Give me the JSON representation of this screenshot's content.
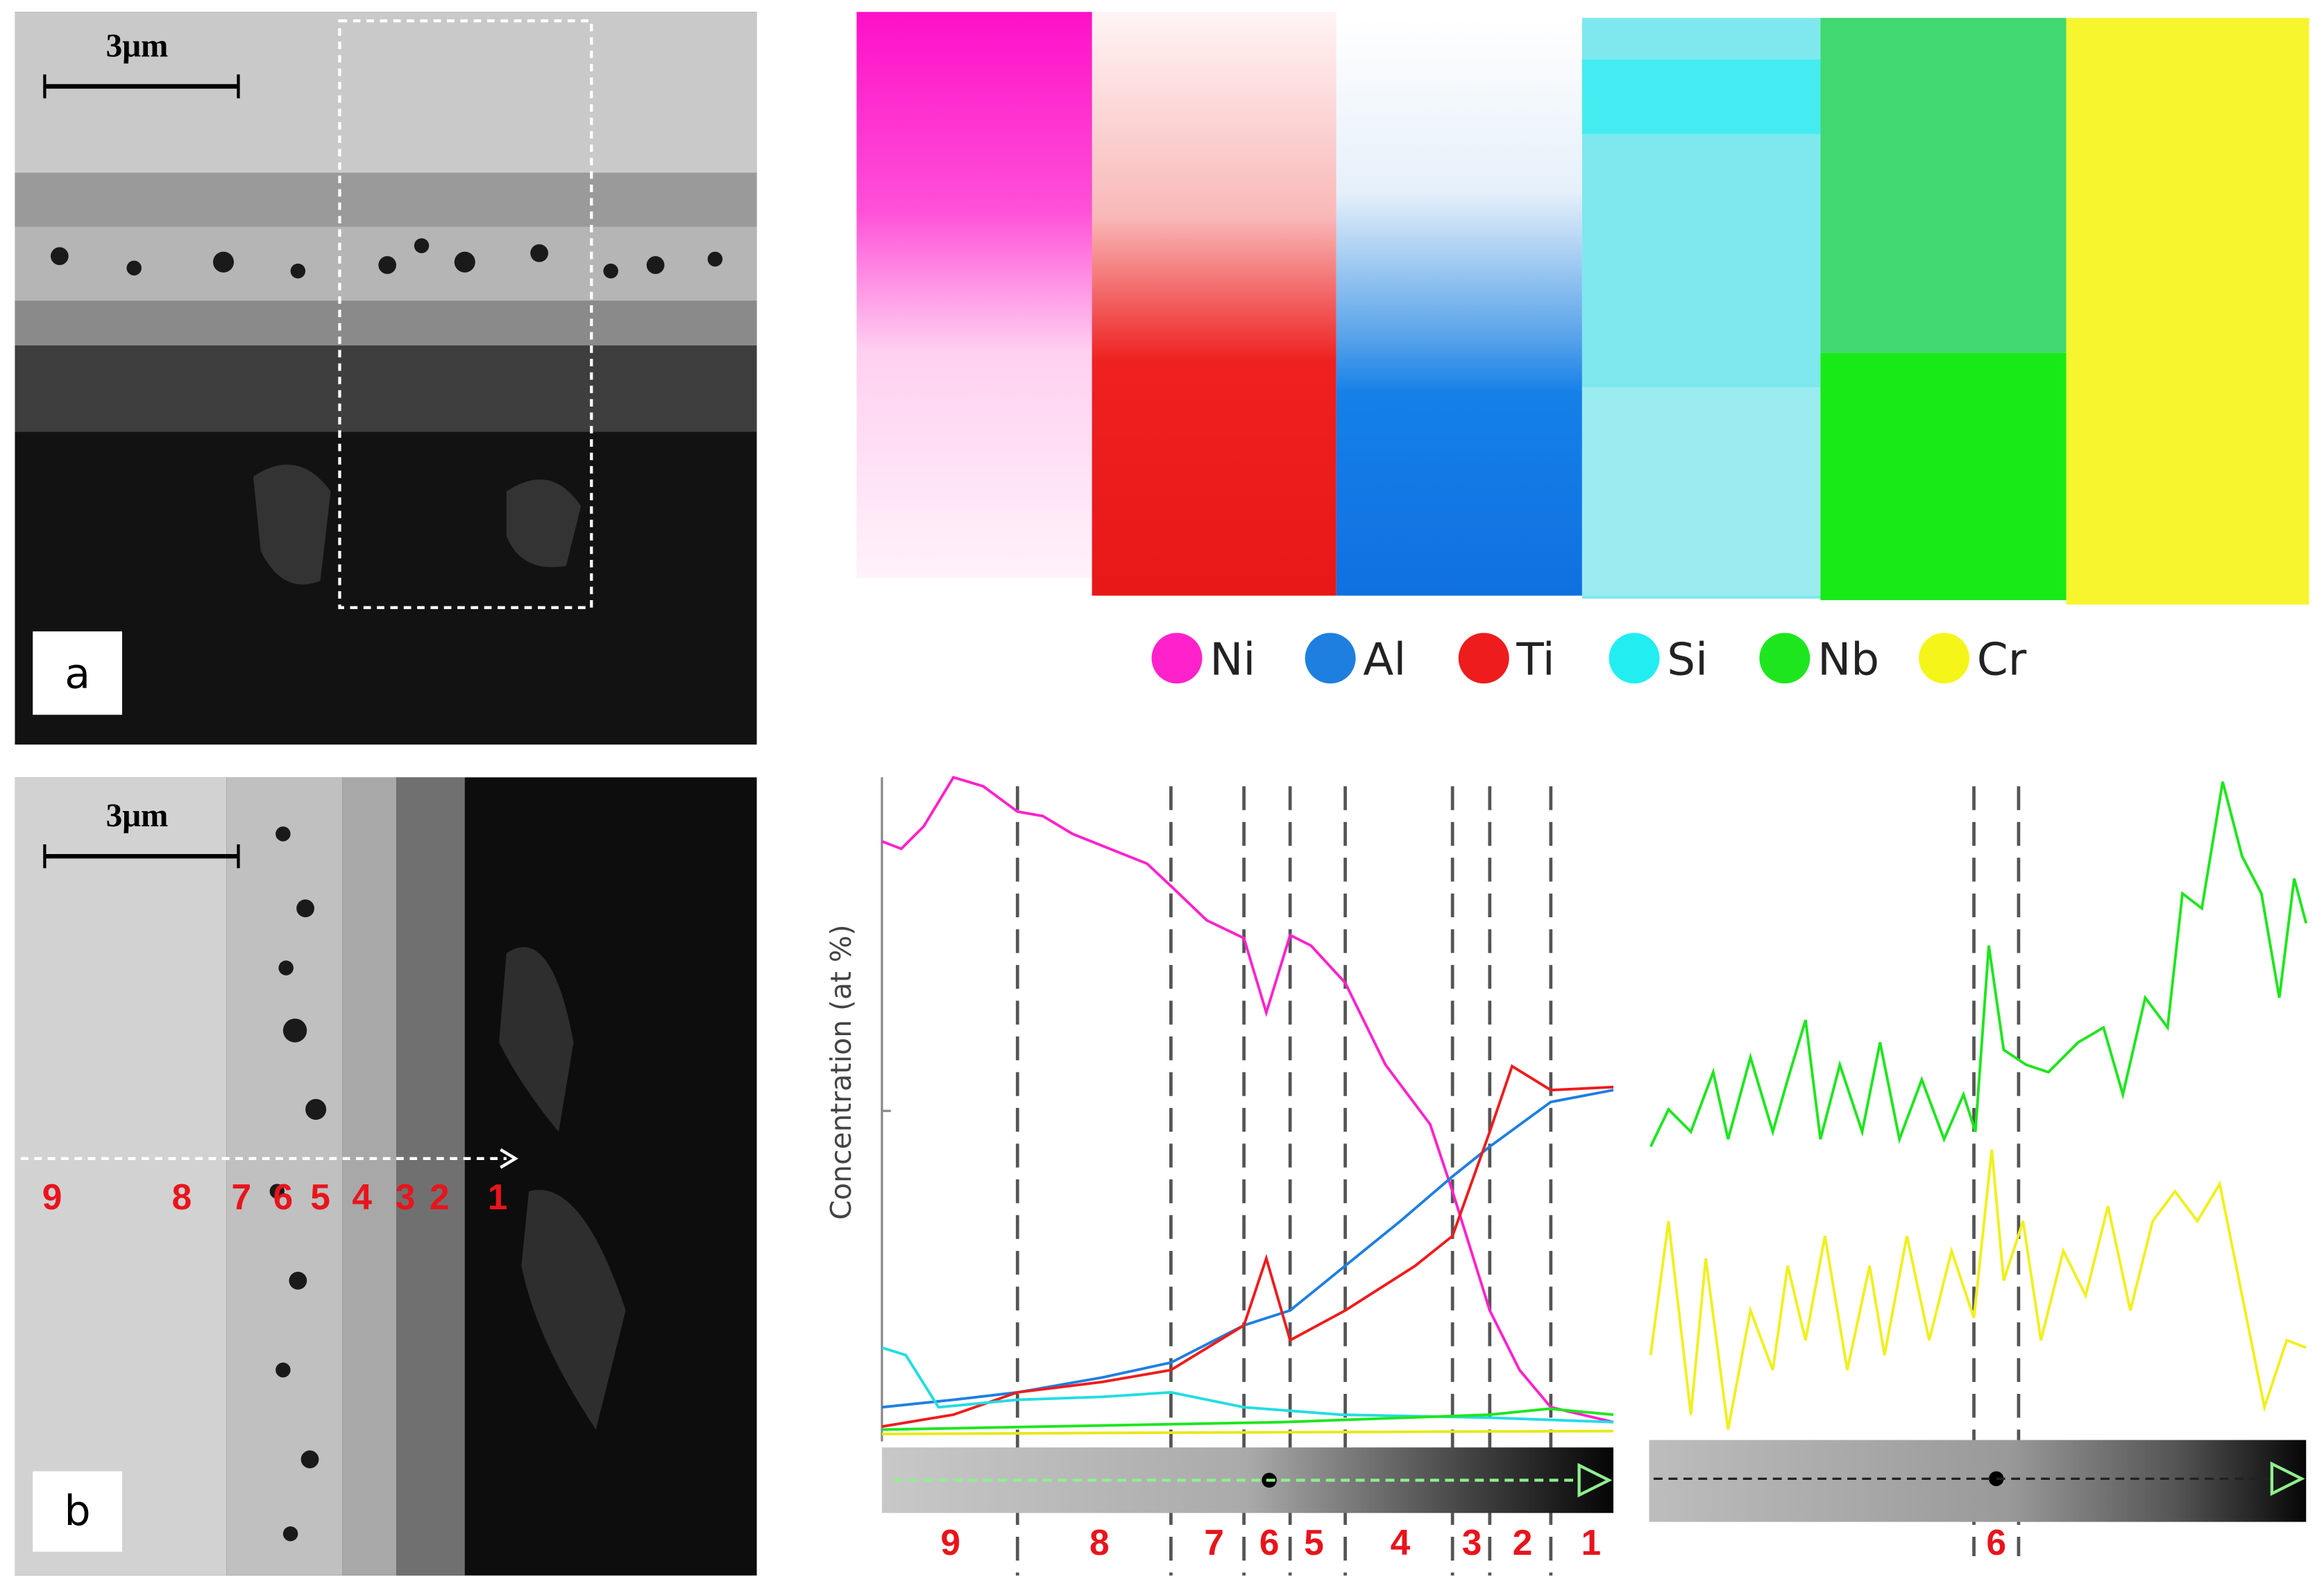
{
  "panel_a": {
    "label": "a",
    "scale_bar": "3μm"
  },
  "panel_b": {
    "label": "b",
    "scale_bar": "3μm",
    "zones": [
      "9",
      "8",
      "7",
      "6",
      "5",
      "4",
      "3",
      "2",
      "1"
    ]
  },
  "element_maps": {
    "legend": [
      {
        "name": "Ni",
        "color": "#ff22cc"
      },
      {
        "name": "Al",
        "color": "#1e7fe0"
      },
      {
        "name": "Ti",
        "color": "#ee1c1c"
      },
      {
        "name": "Si",
        "color": "#22eef2"
      },
      {
        "name": "Nb",
        "color": "#1ee61e"
      },
      {
        "name": "Cr",
        "color": "#f5f51a"
      }
    ]
  },
  "line_scan": {
    "y_axis_label": "Concentration (at %)",
    "zones": [
      "9",
      "8",
      "7",
      "6",
      "5",
      "4",
      "3",
      "2",
      "1"
    ]
  },
  "nb_cr_scan": {
    "zones": [
      "6"
    ]
  }
}
